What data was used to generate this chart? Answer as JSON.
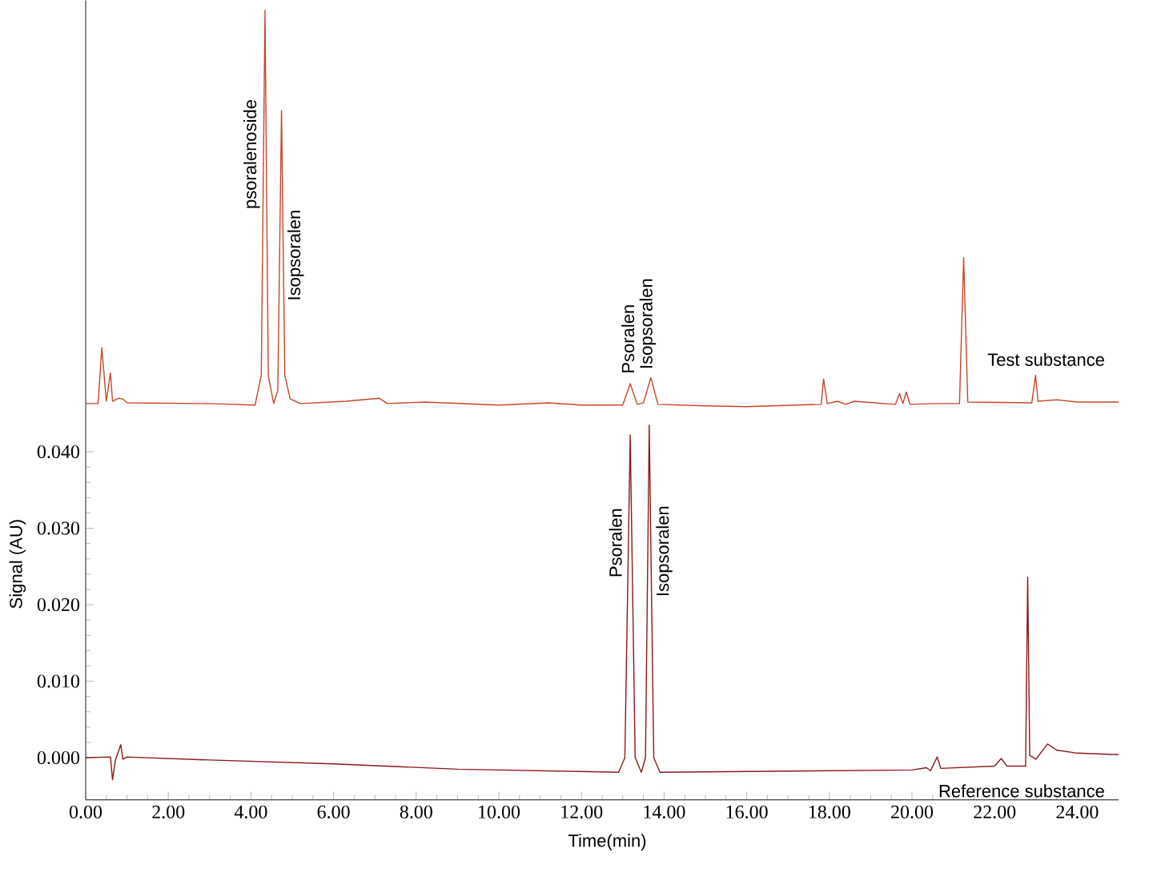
{
  "chart_data": {
    "type": "line",
    "xlabel": "Time(min)",
    "ylabel": "Signal (AU)",
    "xlim": [
      0,
      25
    ],
    "ylim": [
      -0.0055,
      0.099
    ],
    "xticks": [
      {
        "value": 0,
        "label": "0.00"
      },
      {
        "value": 2,
        "label": "2.00"
      },
      {
        "value": 4,
        "label": "4.00"
      },
      {
        "value": 6,
        "label": "6.00"
      },
      {
        "value": 8,
        "label": "8.00"
      },
      {
        "value": 10,
        "label": "10.00"
      },
      {
        "value": 12,
        "label": "12.00"
      },
      {
        "value": 14,
        "label": "14.00"
      },
      {
        "value": 16,
        "label": "16.00"
      },
      {
        "value": 18,
        "label": "18.00"
      },
      {
        "value": 20,
        "label": "20.00"
      },
      {
        "value": 22,
        "label": "22.00"
      },
      {
        "value": 24,
        "label": "24.00"
      }
    ],
    "yticks": [
      {
        "value": 0,
        "label": "0.000"
      },
      {
        "value": 0.01,
        "label": "0.010"
      },
      {
        "value": 0.02,
        "label": "0.020"
      },
      {
        "value": 0.03,
        "label": "0.030"
      },
      {
        "value": 0.04,
        "label": "0.040"
      }
    ],
    "series": [
      {
        "name": "Test substance",
        "color": "#c8462a",
        "x": [
          0,
          0.3,
          0.39,
          0.5,
          0.6,
          0.65,
          0.8,
          0.9,
          1.0,
          3.0,
          4.1,
          4.25,
          4.34,
          4.42,
          4.55,
          4.65,
          4.74,
          4.82,
          4.95,
          5.2,
          6.3,
          7.1,
          7.3,
          8.2,
          10,
          11.2,
          12,
          13.0,
          13.18,
          13.35,
          13.5,
          13.68,
          13.85,
          15,
          16,
          17.8,
          17.86,
          17.95,
          18.2,
          18.4,
          18.6,
          19.6,
          19.7,
          19.78,
          19.86,
          19.95,
          20.5,
          21.15,
          21.25,
          21.35,
          22.9,
          22.99,
          23.05,
          23.5,
          24,
          25
        ],
        "values": [
          0.0463,
          0.0463,
          0.0536,
          0.0466,
          0.0503,
          0.0466,
          0.047,
          0.0469,
          0.0464,
          0.0463,
          0.0461,
          0.05,
          0.0977,
          0.05,
          0.0463,
          0.048,
          0.0846,
          0.05,
          0.0469,
          0.0463,
          0.0466,
          0.047,
          0.0463,
          0.0465,
          0.0461,
          0.0464,
          0.0461,
          0.0461,
          0.0489,
          0.0462,
          0.0464,
          0.0497,
          0.0462,
          0.046,
          0.0459,
          0.0462,
          0.0495,
          0.0463,
          0.0466,
          0.0462,
          0.0466,
          0.0462,
          0.0476,
          0.0463,
          0.0478,
          0.0462,
          0.0463,
          0.0463,
          0.0654,
          0.0465,
          0.0464,
          0.05,
          0.0466,
          0.0468,
          0.0465,
          0.0465
        ]
      },
      {
        "name": "Reference substance",
        "color": "#8b1a1a",
        "x": [
          0,
          0.6,
          0.65,
          0.72,
          0.85,
          0.9,
          1.0,
          3,
          6,
          9,
          12.9,
          13.05,
          13.18,
          13.3,
          13.45,
          13.55,
          13.64,
          13.75,
          13.9,
          16,
          20,
          20.35,
          20.45,
          20.61,
          20.7,
          22.0,
          22.16,
          22.3,
          22.75,
          22.8,
          22.85,
          23.0,
          23.28,
          23.5,
          24,
          25
        ],
        "values": [
          0,
          0.0001,
          -0.0029,
          -0.0003,
          0.0017,
          -0.0002,
          0.0001,
          -0.0003,
          -0.0008,
          -0.0015,
          -0.0019,
          0.0,
          0.0422,
          0.0,
          -0.0019,
          0.0,
          0.0435,
          0.0,
          -0.0019,
          -0.0018,
          -0.0016,
          -0.0013,
          -0.0017,
          0.0001,
          -0.0014,
          -0.0011,
          -0.0001,
          -0.0011,
          -0.0011,
          0.0236,
          0.0003,
          -0.0002,
          0.0018,
          0.001,
          0.0006,
          0.0004
        ]
      }
    ],
    "annotations": [
      {
        "text": "psoralenoside",
        "x": 4.34,
        "y": 0.0789
      },
      {
        "text": "Isopsoralen",
        "x": 4.74,
        "y": 0.0657
      },
      {
        "text": "Psoralen",
        "x": 13.18,
        "y": 0.0489
      },
      {
        "text": "Isopsoralen",
        "x": 13.68,
        "y": 0.0497
      },
      {
        "text": "Psoralen",
        "x": 13.18,
        "y": 0.0281
      },
      {
        "text": "Isopsoralen",
        "x": 13.64,
        "y": 0.027
      }
    ]
  }
}
